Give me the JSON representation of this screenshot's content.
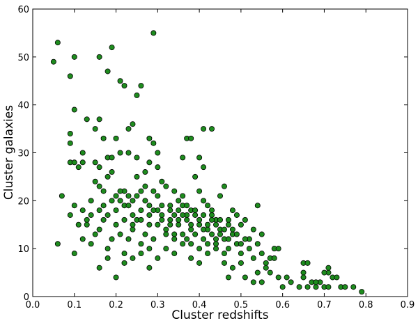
{
  "chart_data": {
    "type": "scatter",
    "title": "",
    "xlabel": "Cluster redshifts",
    "ylabel": "Cluster galaxies",
    "xlim": [
      0.0,
      0.9
    ],
    "ylim": [
      0,
      60
    ],
    "xticks": [
      "0.0",
      "0.1",
      "0.2",
      "0.3",
      "0.4",
      "0.5",
      "0.6",
      "0.7",
      "0.8",
      "0.9"
    ],
    "yticks": [
      "0",
      "10",
      "20",
      "30",
      "40",
      "50",
      "60"
    ],
    "grid": false,
    "legend": "none",
    "marker_color": "#1e8c1e",
    "marker_edge_color": "#000000",
    "points": [
      [
        0.06,
        53
      ],
      [
        0.05,
        49
      ],
      [
        0.09,
        46
      ],
      [
        0.1,
        50
      ],
      [
        0.16,
        50
      ],
      [
        0.19,
        52
      ],
      [
        0.29,
        55
      ],
      [
        0.18,
        47
      ],
      [
        0.21,
        45
      ],
      [
        0.22,
        44
      ],
      [
        0.26,
        44
      ],
      [
        0.25,
        42
      ],
      [
        0.1,
        39
      ],
      [
        0.13,
        37
      ],
      [
        0.16,
        37
      ],
      [
        0.09,
        34
      ],
      [
        0.15,
        35
      ],
      [
        0.09,
        32
      ],
      [
        0.17,
        33
      ],
      [
        0.2,
        33
      ],
      [
        0.23,
        35
      ],
      [
        0.24,
        36
      ],
      [
        0.28,
        33
      ],
      [
        0.29,
        32
      ],
      [
        0.37,
        33
      ],
      [
        0.38,
        33
      ],
      [
        0.41,
        35
      ],
      [
        0.43,
        35
      ],
      [
        0.12,
        30
      ],
      [
        0.09,
        28
      ],
      [
        0.1,
        28
      ],
      [
        0.11,
        27
      ],
      [
        0.12,
        28
      ],
      [
        0.15,
        28
      ],
      [
        0.16,
        27
      ],
      [
        0.18,
        29
      ],
      [
        0.19,
        29
      ],
      [
        0.21,
        30
      ],
      [
        0.23,
        30
      ],
      [
        0.25,
        29
      ],
      [
        0.3,
        30
      ],
      [
        0.28,
        28
      ],
      [
        0.27,
        26
      ],
      [
        0.3,
        27
      ],
      [
        0.36,
        29
      ],
      [
        0.4,
        29
      ],
      [
        0.41,
        27
      ],
      [
        0.07,
        21
      ],
      [
        0.09,
        17
      ],
      [
        0.1,
        19
      ],
      [
        0.12,
        18
      ],
      [
        0.13,
        16
      ],
      [
        0.14,
        17
      ],
      [
        0.15,
        24
      ],
      [
        0.16,
        23
      ],
      [
        0.17,
        22
      ],
      [
        0.18,
        25
      ],
      [
        0.19,
        26
      ],
      [
        0.2,
        21
      ],
      [
        0.21,
        20
      ],
      [
        0.22,
        22
      ],
      [
        0.23,
        21
      ],
      [
        0.24,
        20
      ],
      [
        0.25,
        25
      ],
      [
        0.26,
        22
      ],
      [
        0.27,
        23
      ],
      [
        0.28,
        19
      ],
      [
        0.29,
        22
      ],
      [
        0.3,
        21
      ],
      [
        0.31,
        24
      ],
      [
        0.32,
        23
      ],
      [
        0.33,
        19
      ],
      [
        0.34,
        22
      ],
      [
        0.35,
        20
      ],
      [
        0.36,
        21
      ],
      [
        0.37,
        17
      ],
      [
        0.38,
        18
      ],
      [
        0.39,
        25
      ],
      [
        0.4,
        22
      ],
      [
        0.41,
        20
      ],
      [
        0.42,
        19
      ],
      [
        0.43,
        17
      ],
      [
        0.44,
        16
      ],
      [
        0.45,
        21
      ],
      [
        0.46,
        23
      ],
      [
        0.47,
        16
      ],
      [
        0.48,
        18
      ],
      [
        0.49,
        17
      ],
      [
        0.5,
        15
      ],
      [
        0.51,
        16
      ],
      [
        0.52,
        12
      ],
      [
        0.53,
        14
      ],
      [
        0.54,
        19
      ],
      [
        0.55,
        13
      ],
      [
        0.11,
        15
      ],
      [
        0.12,
        12
      ],
      [
        0.13,
        15
      ],
      [
        0.14,
        11
      ],
      [
        0.15,
        13
      ],
      [
        0.16,
        14
      ],
      [
        0.17,
        16
      ],
      [
        0.18,
        10
      ],
      [
        0.19,
        12
      ],
      [
        0.2,
        15
      ],
      [
        0.21,
        13
      ],
      [
        0.22,
        9
      ],
      [
        0.23,
        12
      ],
      [
        0.24,
        14
      ],
      [
        0.25,
        16
      ],
      [
        0.26,
        11
      ],
      [
        0.27,
        13
      ],
      [
        0.28,
        10
      ],
      [
        0.29,
        12
      ],
      [
        0.3,
        15
      ],
      [
        0.31,
        17
      ],
      [
        0.32,
        14
      ],
      [
        0.33,
        16
      ],
      [
        0.34,
        13
      ],
      [
        0.35,
        15
      ],
      [
        0.36,
        17
      ],
      [
        0.37,
        12
      ],
      [
        0.38,
        14
      ],
      [
        0.39,
        13
      ],
      [
        0.4,
        15
      ],
      [
        0.41,
        12
      ],
      [
        0.42,
        14
      ],
      [
        0.43,
        13
      ],
      [
        0.44,
        11
      ],
      [
        0.45,
        14
      ],
      [
        0.46,
        12
      ],
      [
        0.47,
        10
      ],
      [
        0.48,
        13
      ],
      [
        0.49,
        11
      ],
      [
        0.5,
        9
      ],
      [
        0.51,
        12
      ],
      [
        0.52,
        10
      ],
      [
        0.53,
        8
      ],
      [
        0.54,
        11
      ],
      [
        0.55,
        9
      ],
      [
        0.56,
        7
      ],
      [
        0.57,
        8
      ],
      [
        0.58,
        10
      ],
      [
        0.06,
        11
      ],
      [
        0.1,
        9
      ],
      [
        0.16,
        6
      ],
      [
        0.18,
        8
      ],
      [
        0.2,
        4
      ],
      [
        0.22,
        7
      ],
      [
        0.24,
        8
      ],
      [
        0.26,
        9
      ],
      [
        0.28,
        6
      ],
      [
        0.3,
        8
      ],
      [
        0.32,
        10
      ],
      [
        0.34,
        9
      ],
      [
        0.36,
        11
      ],
      [
        0.38,
        8
      ],
      [
        0.4,
        7
      ],
      [
        0.42,
        9
      ],
      [
        0.44,
        10
      ],
      [
        0.46,
        7
      ],
      [
        0.47,
        4
      ],
      [
        0.48,
        6
      ],
      [
        0.5,
        7
      ],
      [
        0.51,
        4
      ],
      [
        0.53,
        3
      ],
      [
        0.54,
        5
      ],
      [
        0.55,
        3
      ],
      [
        0.56,
        6
      ],
      [
        0.57,
        5
      ],
      [
        0.58,
        8
      ],
      [
        0.59,
        10
      ],
      [
        0.59,
        4
      ],
      [
        0.6,
        2
      ],
      [
        0.61,
        4
      ],
      [
        0.62,
        3
      ],
      [
        0.64,
        2
      ],
      [
        0.65,
        7
      ],
      [
        0.66,
        7
      ],
      [
        0.65,
        5
      ],
      [
        0.65,
        4
      ],
      [
        0.67,
        3
      ],
      [
        0.68,
        2
      ],
      [
        0.69,
        3
      ],
      [
        0.7,
        2
      ],
      [
        0.71,
        2
      ],
      [
        0.71,
        5
      ],
      [
        0.72,
        4
      ],
      [
        0.73,
        4
      ],
      [
        0.74,
        2
      ],
      [
        0.75,
        2
      ],
      [
        0.77,
        2
      ],
      [
        0.79,
        1
      ],
      [
        0.66,
        2
      ],
      [
        0.68,
        3
      ],
      [
        0.7,
        5
      ],
      [
        0.71,
        6
      ],
      [
        0.2,
        18
      ],
      [
        0.22,
        19
      ],
      [
        0.24,
        17
      ],
      [
        0.26,
        18
      ],
      [
        0.28,
        17
      ],
      [
        0.3,
        18
      ],
      [
        0.31,
        16
      ],
      [
        0.33,
        15
      ],
      [
        0.35,
        18
      ],
      [
        0.36,
        19
      ],
      [
        0.37,
        16
      ],
      [
        0.38,
        15
      ],
      [
        0.39,
        17
      ],
      [
        0.4,
        16
      ],
      [
        0.41,
        14
      ],
      [
        0.42,
        15
      ],
      [
        0.43,
        16
      ],
      [
        0.44,
        15
      ],
      [
        0.45,
        13
      ],
      [
        0.46,
        14
      ],
      [
        0.47,
        12
      ],
      [
        0.48,
        14
      ],
      [
        0.49,
        13
      ],
      [
        0.5,
        11
      ],
      [
        0.19,
        20
      ],
      [
        0.21,
        22
      ],
      [
        0.23,
        19
      ],
      [
        0.25,
        21
      ],
      [
        0.27,
        20
      ],
      [
        0.29,
        18
      ],
      [
        0.31,
        19
      ],
      [
        0.33,
        18
      ],
      [
        0.34,
        17
      ],
      [
        0.35,
        16
      ],
      [
        0.37,
        19
      ],
      [
        0.39,
        18
      ],
      [
        0.41,
        17
      ],
      [
        0.43,
        18
      ],
      [
        0.45,
        16
      ],
      [
        0.47,
        15
      ],
      [
        0.14,
        20
      ],
      [
        0.16,
        18
      ],
      [
        0.18,
        17
      ],
      [
        0.17,
        19
      ],
      [
        0.22,
        16
      ],
      [
        0.24,
        15
      ],
      [
        0.26,
        16
      ],
      [
        0.28,
        15
      ],
      [
        0.32,
        13
      ],
      [
        0.34,
        12
      ],
      [
        0.36,
        13
      ],
      [
        0.38,
        11
      ],
      [
        0.4,
        10
      ],
      [
        0.42,
        11
      ],
      [
        0.44,
        12
      ],
      [
        0.46,
        9
      ]
    ]
  }
}
